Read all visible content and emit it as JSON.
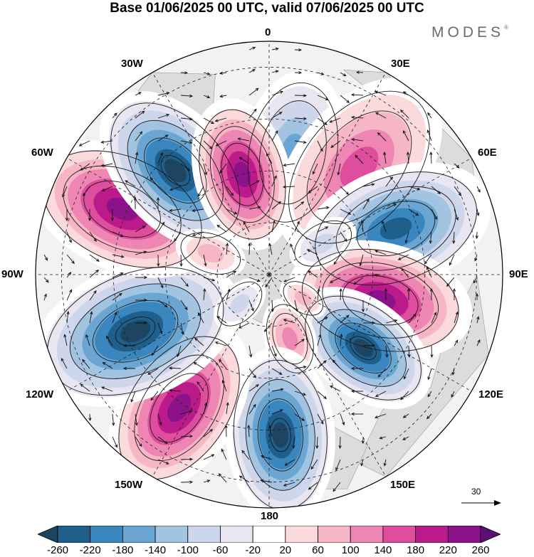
{
  "title": "Base 01/06/2025 00 UTC, valid 07/06/2025 00 UTC",
  "brand": {
    "name": "MODES",
    "mark": "®"
  },
  "longitude_labels": [
    {
      "id": "lon-0",
      "text": "0"
    },
    {
      "id": "lon-30e",
      "text": "30E"
    },
    {
      "id": "lon-60e",
      "text": "60E"
    },
    {
      "id": "lon-90e",
      "text": "90E"
    },
    {
      "id": "lon-120e",
      "text": "120E"
    },
    {
      "id": "lon-150e",
      "text": "150E"
    },
    {
      "id": "lon-180",
      "text": "180"
    },
    {
      "id": "lon-150w",
      "text": "150W"
    },
    {
      "id": "lon-120w",
      "text": "120W"
    },
    {
      "id": "lon-90w",
      "text": "90W"
    },
    {
      "id": "lon-60w",
      "text": "60W"
    },
    {
      "id": "lon-30w",
      "text": "30W"
    }
  ],
  "reference_vector": {
    "value": "30"
  },
  "colorbar": {
    "labels": [
      "-260",
      "-220",
      "-180",
      "-140",
      "-100",
      "-60",
      "-20",
      "20",
      "60",
      "100",
      "140",
      "180",
      "220",
      "260"
    ],
    "colors": [
      "#1d4461",
      "#1f5f8c",
      "#3a86bf",
      "#6aa6d1",
      "#a2c4e0",
      "#cdd6ea",
      "#e8e6f1",
      "#ffffff",
      "#fbdadb",
      "#f6b6c6",
      "#ee86b4",
      "#de4e9c",
      "#bb1a8a",
      "#8c1289",
      "#5c0f73"
    ]
  },
  "colors": {
    "land": "#dcdcdc",
    "ocean": "#f2f2f2",
    "contour": "#1a1a1a",
    "grid": "#222222"
  },
  "anomaly_centers": [
    {
      "lon": 11,
      "colat": 24,
      "level": 3,
      "size": 16
    },
    {
      "lon": 40,
      "colat": 27,
      "level": 11,
      "size": 20
    },
    {
      "lon": 70,
      "colat": 26,
      "level": 1,
      "size": 19
    },
    {
      "lon": 103,
      "colat": 22,
      "level": 13,
      "size": 18
    },
    {
      "lon": 128,
      "colat": 23,
      "level": 0,
      "size": 15
    },
    {
      "lon": 162,
      "colat": 13,
      "level": 10,
      "size": 8
    },
    {
      "lon": 176,
      "colat": 31,
      "level": 0,
      "size": 17
    },
    {
      "lon": 214,
      "colat": 31,
      "level": 13,
      "size": 18
    },
    {
      "lon": 247,
      "colat": 28,
      "level": 0,
      "size": 21
    },
    {
      "lon": 294,
      "colat": 31,
      "level": 13,
      "size": 19
    },
    {
      "lon": 318,
      "colat": 27,
      "level": 0,
      "size": 18
    },
    {
      "lon": 345,
      "colat": 20,
      "level": 13,
      "size": 15
    },
    {
      "lon": 60,
      "colat": 12,
      "level": 5,
      "size": 7
    },
    {
      "lon": 125,
      "colat": 8,
      "level": 9,
      "size": 5
    },
    {
      "lon": 225,
      "colat": 8,
      "level": 5,
      "size": 6
    },
    {
      "lon": 290,
      "colat": 12,
      "level": 9,
      "size": 7
    }
  ]
}
